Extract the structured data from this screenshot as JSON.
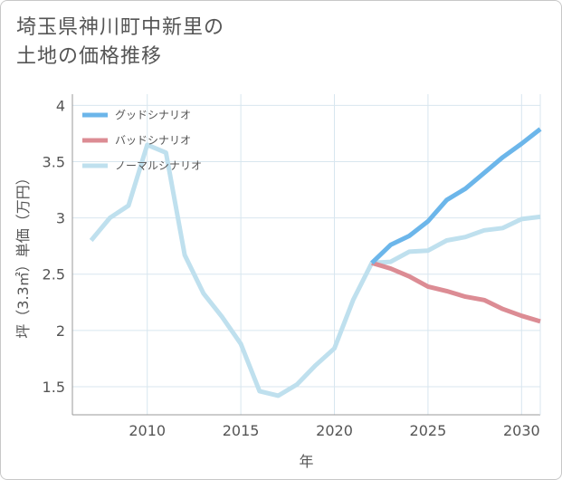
{
  "title": {
    "line1": "埼玉県神川町中新里の",
    "line2": "土地の価格推移"
  },
  "chart_data": {
    "type": "line",
    "xlabel": "年",
    "ylabel": "坪（3.3㎡）単価（万円）",
    "xlim": [
      2006,
      2031
    ],
    "ylim": [
      1.25,
      4.1
    ],
    "x_ticks": [
      2010,
      2015,
      2020,
      2025,
      2030
    ],
    "y_ticks": [
      1.5,
      2,
      2.5,
      3,
      3.5,
      4
    ],
    "x_tick_labels": [
      "2010",
      "2015",
      "2020",
      "2025",
      "2030"
    ],
    "y_tick_labels": [
      "1.5",
      "2",
      "2.5",
      "3",
      "3.5",
      "4"
    ],
    "grid": true,
    "legend_position": "top-left",
    "series": [
      {
        "name": "グッドシナリオ",
        "color": "#6cb6ea",
        "x": [
          2022,
          2023,
          2024,
          2025,
          2026,
          2027,
          2028,
          2029,
          2030,
          2031
        ],
        "y": [
          2.6,
          2.76,
          2.84,
          2.97,
          3.16,
          3.26,
          3.4,
          3.54,
          3.66,
          3.79
        ]
      },
      {
        "name": "バッドシナリオ",
        "color": "#dc8c94",
        "x": [
          2022,
          2023,
          2024,
          2025,
          2026,
          2027,
          2028,
          2029,
          2030,
          2031
        ],
        "y": [
          2.6,
          2.55,
          2.48,
          2.39,
          2.35,
          2.3,
          2.27,
          2.19,
          2.13,
          2.08
        ]
      },
      {
        "name": "ノーマルシナリオ",
        "color": "#bfe0ee",
        "x": [
          2007,
          2008,
          2009,
          2010,
          2011,
          2012,
          2013,
          2014,
          2015,
          2016,
          2017,
          2018,
          2019,
          2020,
          2021,
          2022,
          2023,
          2024,
          2025,
          2026,
          2027,
          2028,
          2029,
          2030,
          2031
        ],
        "y": [
          2.8,
          3.0,
          3.11,
          3.65,
          3.58,
          2.67,
          2.33,
          2.12,
          1.88,
          1.46,
          1.42,
          1.52,
          1.69,
          1.84,
          2.27,
          2.6,
          2.61,
          2.7,
          2.71,
          2.8,
          2.83,
          2.89,
          2.91,
          2.99,
          3.01
        ]
      }
    ]
  }
}
